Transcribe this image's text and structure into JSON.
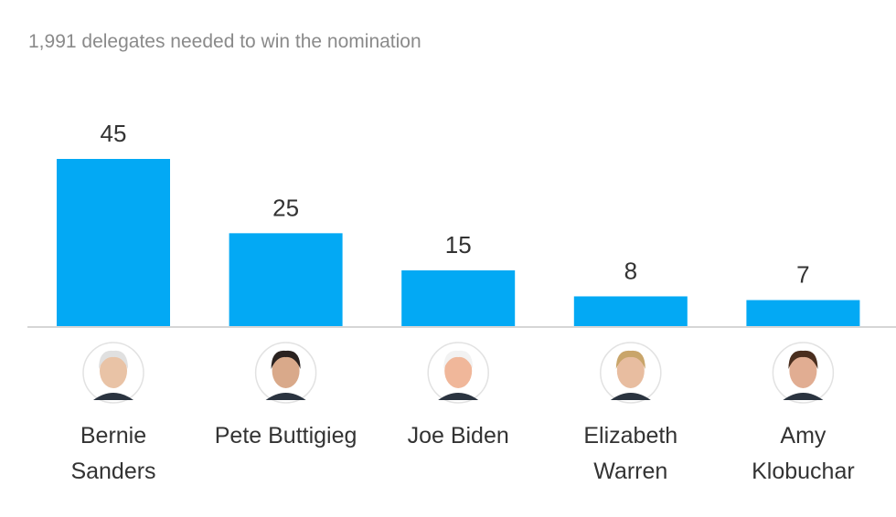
{
  "chart_data": {
    "type": "bar",
    "title": "1,991 delegates needed to win the nomination",
    "categories": [
      "Bernie Sanders",
      "Pete Buttigieg",
      "Joe Biden",
      "Elizabeth Warren",
      "Amy Klobuchar"
    ],
    "label_lines": [
      [
        "Bernie",
        "Sanders"
      ],
      [
        "Pete Buttigieg"
      ],
      [
        "Joe Biden"
      ],
      [
        "Elizabeth",
        "Warren"
      ],
      [
        "Amy",
        "Klobuchar"
      ]
    ],
    "values": [
      45,
      25,
      15,
      8,
      7
    ],
    "ylim": [
      0,
      45
    ],
    "grid": false,
    "bar_color": "#03a9f4",
    "avatar_icons": [
      "candidate-photo",
      "candidate-photo",
      "candidate-photo",
      "candidate-photo",
      "candidate-photo"
    ]
  }
}
